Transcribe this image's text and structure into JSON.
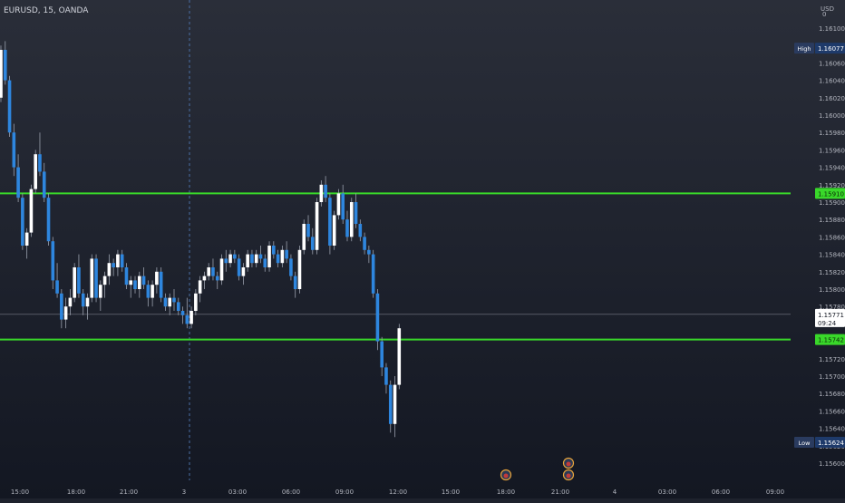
{
  "header": {
    "symbol_line": "EURUSD, 15, OANDA"
  },
  "currency_label": "USD",
  "currency_menu_glyph": "0",
  "colors": {
    "background_top": "#2a2e39",
    "background_bottom": "#131722",
    "up_candle": "#ffffff",
    "down_candle": "#2e86de",
    "level_line": "#39d82a",
    "axis_text": "#b2b5be",
    "crosshair": "#4a6fa5",
    "last_price_line": "#787b86"
  },
  "chart_data": {
    "type": "candlestick",
    "symbol": "EURUSD",
    "interval": "15",
    "source": "OANDA",
    "ylim": [
      1.1559,
      1.1613
    ],
    "y_ticks": [
      "1.16100",
      "1.16080",
      "1.16060",
      "1.16040",
      "1.16020",
      "1.16000",
      "1.15980",
      "1.15960",
      "1.15940",
      "1.15920",
      "1.15900",
      "1.15880",
      "1.15860",
      "1.15840",
      "1.15820",
      "1.15800",
      "1.15780",
      "1.15760",
      "1.15740",
      "1.15720",
      "1.15700",
      "1.15680",
      "1.15660",
      "1.15640",
      "1.15620",
      "1.15600"
    ],
    "x_ticks": [
      "15:00",
      "18:00",
      "21:00",
      "3",
      "03:00",
      "06:00",
      "09:00",
      "12:00",
      "15:00",
      "18:00",
      "21:00",
      "4",
      "03:00",
      "06:00",
      "09:00"
    ],
    "candle_count_per_hour": 4,
    "first_candle_time_offset_hours": -3.6,
    "candles_ohlc": [
      [
        1.15915,
        1.15935,
        1.1589,
        1.1592
      ],
      [
        1.1592,
        1.16075,
        1.1591,
        1.1607
      ],
      [
        1.1607,
        1.16075,
        1.1599,
        1.16005
      ],
      [
        1.16005,
        1.1601,
        1.15975,
        1.1599
      ],
      [
        1.1599,
        1.15995,
        1.15935,
        1.15945
      ],
      [
        1.15945,
        1.16,
        1.1594,
        1.15995
      ],
      [
        1.15995,
        1.1606,
        1.1599,
        1.16055
      ],
      [
        1.16055,
        1.1606,
        1.1602,
        1.16025
      ],
      [
        1.16025,
        1.16035,
        1.16005,
        1.16015
      ],
      [
        1.16015,
        1.1603,
        1.16005,
        1.1602
      ],
      [
        1.1602,
        1.1608,
        1.16015,
        1.16075
      ],
      [
        1.16075,
        1.16085,
        1.16035,
        1.1604
      ],
      [
        1.1604,
        1.16045,
        1.15975,
        1.1598
      ],
      [
        1.1598,
        1.1599,
        1.1593,
        1.1594
      ],
      [
        1.1594,
        1.15955,
        1.159,
        1.15905
      ],
      [
        1.15905,
        1.1591,
        1.15845,
        1.1585
      ],
      [
        1.1585,
        1.1587,
        1.15835,
        1.15865
      ],
      [
        1.15865,
        1.1592,
        1.1586,
        1.15915
      ],
      [
        1.15915,
        1.1596,
        1.1591,
        1.15955
      ],
      [
        1.15955,
        1.1598,
        1.1593,
        1.15935
      ],
      [
        1.15935,
        1.15945,
        1.159,
        1.15905
      ],
      [
        1.15905,
        1.1591,
        1.1585,
        1.15855
      ],
      [
        1.15855,
        1.1586,
        1.158,
        1.1581
      ],
      [
        1.1581,
        1.1583,
        1.1579,
        1.15795
      ],
      [
        1.15795,
        1.158,
        1.15755,
        1.15765
      ],
      [
        1.15765,
        1.1579,
        1.15755,
        1.1578
      ],
      [
        1.1578,
        1.158,
        1.1577,
        1.1579
      ],
      [
        1.1579,
        1.1583,
        1.15785,
        1.15825
      ],
      [
        1.15825,
        1.1584,
        1.1579,
        1.15795
      ],
      [
        1.15795,
        1.158,
        1.1577,
        1.1578
      ],
      [
        1.1578,
        1.15795,
        1.15765,
        1.1579
      ],
      [
        1.1579,
        1.1584,
        1.15785,
        1.15835
      ],
      [
        1.15835,
        1.1584,
        1.15785,
        1.1579
      ],
      [
        1.1579,
        1.1581,
        1.15775,
        1.15805
      ],
      [
        1.15805,
        1.1582,
        1.1579,
        1.15815
      ],
      [
        1.15815,
        1.1584,
        1.15805,
        1.1583
      ],
      [
        1.1583,
        1.15835,
        1.15815,
        1.15825
      ],
      [
        1.15825,
        1.15845,
        1.15815,
        1.1584
      ],
      [
        1.1584,
        1.15845,
        1.1582,
        1.15825
      ],
      [
        1.15825,
        1.1583,
        1.158,
        1.15805
      ],
      [
        1.15805,
        1.15815,
        1.1579,
        1.1581
      ],
      [
        1.1581,
        1.15815,
        1.15795,
        1.158
      ],
      [
        1.158,
        1.1582,
        1.1579,
        1.15815
      ],
      [
        1.15815,
        1.15825,
        1.158,
        1.15805
      ],
      [
        1.15805,
        1.1581,
        1.1578,
        1.1579
      ],
      [
        1.1579,
        1.1581,
        1.1578,
        1.15805
      ],
      [
        1.15805,
        1.15825,
        1.15795,
        1.1582
      ],
      [
        1.1582,
        1.15825,
        1.15785,
        1.1579
      ],
      [
        1.1579,
        1.15795,
        1.15775,
        1.1578
      ],
      [
        1.1578,
        1.15795,
        1.1577,
        1.1579
      ],
      [
        1.1579,
        1.158,
        1.15775,
        1.15785
      ],
      [
        1.15785,
        1.1579,
        1.1577,
        1.15775
      ],
      [
        1.15775,
        1.1578,
        1.1576,
        1.1577
      ],
      [
        1.1577,
        1.1579,
        1.15755,
        1.1576
      ],
      [
        1.1576,
        1.1578,
        1.15755,
        1.15775
      ],
      [
        1.15775,
        1.158,
        1.1577,
        1.15795
      ],
      [
        1.15795,
        1.15815,
        1.15785,
        1.1581
      ],
      [
        1.1581,
        1.1582,
        1.158,
        1.15815
      ],
      [
        1.15815,
        1.1583,
        1.1581,
        1.15825
      ],
      [
        1.15825,
        1.15835,
        1.1581,
        1.15815
      ],
      [
        1.15815,
        1.1582,
        1.158,
        1.1581
      ],
      [
        1.1581,
        1.1584,
        1.15805,
        1.15835
      ],
      [
        1.15835,
        1.15845,
        1.1582,
        1.1583
      ],
      [
        1.1583,
        1.15845,
        1.15825,
        1.1584
      ],
      [
        1.1584,
        1.15845,
        1.1583,
        1.15835
      ],
      [
        1.15835,
        1.1584,
        1.1581,
        1.15815
      ],
      [
        1.15815,
        1.1583,
        1.15805,
        1.15825
      ],
      [
        1.15825,
        1.15845,
        1.1582,
        1.1584
      ],
      [
        1.1584,
        1.15845,
        1.15825,
        1.1583
      ],
      [
        1.1583,
        1.15845,
        1.15825,
        1.1584
      ],
      [
        1.1584,
        1.1585,
        1.1583,
        1.15835
      ],
      [
        1.15835,
        1.1584,
        1.1582,
        1.15825
      ],
      [
        1.15825,
        1.15855,
        1.1582,
        1.1585
      ],
      [
        1.1585,
        1.15855,
        1.15835,
        1.1584
      ],
      [
        1.1584,
        1.15845,
        1.15825,
        1.1583
      ],
      [
        1.1583,
        1.1585,
        1.15825,
        1.15845
      ],
      [
        1.15845,
        1.15855,
        1.1583,
        1.15835
      ],
      [
        1.15835,
        1.1584,
        1.1581,
        1.15815
      ],
      [
        1.15815,
        1.1582,
        1.1579,
        1.158
      ],
      [
        1.158,
        1.1585,
        1.15795,
        1.15845
      ],
      [
        1.15845,
        1.1588,
        1.1584,
        1.15875
      ],
      [
        1.15875,
        1.15885,
        1.15855,
        1.1586
      ],
      [
        1.1586,
        1.1587,
        1.1584,
        1.15845
      ],
      [
        1.15845,
        1.15905,
        1.1584,
        1.159
      ],
      [
        1.159,
        1.15925,
        1.15895,
        1.1592
      ],
      [
        1.1592,
        1.1593,
        1.159,
        1.15905
      ],
      [
        1.15905,
        1.1591,
        1.1584,
        1.1585
      ],
      [
        1.1585,
        1.1589,
        1.15845,
        1.15885
      ],
      [
        1.15885,
        1.15915,
        1.1588,
        1.1591
      ],
      [
        1.1591,
        1.1592,
        1.15875,
        1.1588
      ],
      [
        1.1588,
        1.1589,
        1.15855,
        1.1586
      ],
      [
        1.1586,
        1.15905,
        1.15855,
        1.159
      ],
      [
        1.159,
        1.1591,
        1.1587,
        1.15875
      ],
      [
        1.15875,
        1.1588,
        1.15855,
        1.1586
      ],
      [
        1.1586,
        1.15865,
        1.1584,
        1.15845
      ],
      [
        1.15845,
        1.1585,
        1.1583,
        1.1584
      ],
      [
        1.1584,
        1.15845,
        1.1579,
        1.15795
      ],
      [
        1.15795,
        1.158,
        1.1573,
        1.1574
      ],
      [
        1.1574,
        1.15745,
        1.157,
        1.1571
      ],
      [
        1.1571,
        1.15715,
        1.1568,
        1.1569
      ],
      [
        1.1569,
        1.15695,
        1.15635,
        1.15645
      ],
      [
        1.15645,
        1.157,
        1.1563,
        1.1569
      ],
      [
        1.1569,
        1.1576,
        1.15685,
        1.15755
      ]
    ],
    "horizontal_levels": [
      1.1591,
      1.15742
    ],
    "last_price": 1.15771,
    "high": 1.16077,
    "low": 1.15624,
    "price_tags": {
      "high_label": "High",
      "high_value": "1.16077",
      "level1_value": "1.15910",
      "last_value": "1.15771",
      "countdown": "09:24",
      "level2_value": "1.15742",
      "low_label": "Low",
      "low_value": "1.15624"
    },
    "grid": false,
    "legend": "none"
  }
}
